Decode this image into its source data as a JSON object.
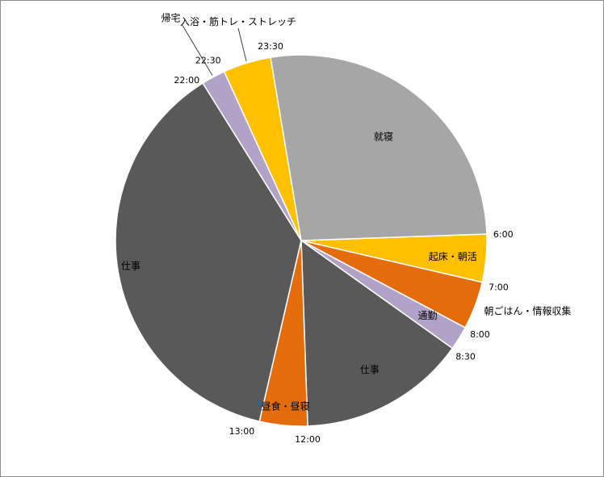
{
  "chart_data": {
    "type": "pie",
    "title": "",
    "unit": "hours",
    "start_time": "6:00",
    "slices": [
      {
        "label": "起床・朝活",
        "value": 1.0,
        "color": "#FFC000"
      },
      {
        "label": "朝ごはん・情報収集",
        "value": 1.0,
        "color": "#E46C0A"
      },
      {
        "label": "通勤",
        "value": 0.5,
        "color": "#B3A2C7"
      },
      {
        "label": "仕事",
        "value": 3.5,
        "color": "#595959"
      },
      {
        "label": "昼食・昼寝",
        "value": 1.0,
        "color": "#E46C0A"
      },
      {
        "label": "仕事",
        "value": 9.0,
        "color": "#595959"
      },
      {
        "label": "帰宅",
        "value": 0.5,
        "color": "#B3A2C7"
      },
      {
        "label": "入浴・筋トレ・ストレッチ",
        "value": 1.0,
        "color": "#FFC000"
      },
      {
        "label": "就寝",
        "value": 6.5,
        "color": "#A6A6A6"
      }
    ],
    "boundary_times": [
      "6:00",
      "7:00",
      "8:00",
      "8:30",
      "12:00",
      "13:00",
      "22:00",
      "22:30",
      "23:30"
    ]
  }
}
